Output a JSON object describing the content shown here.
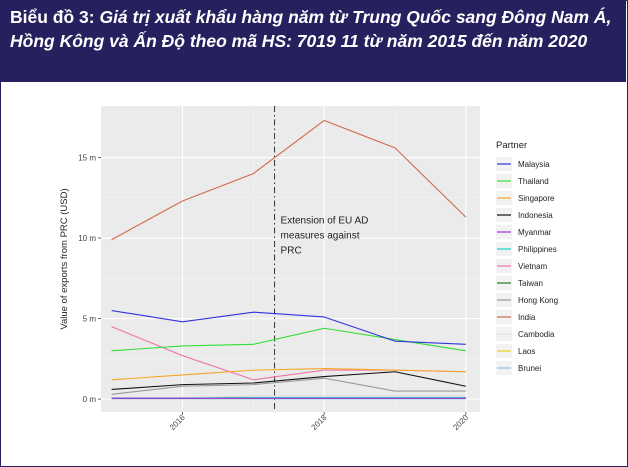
{
  "caption": {
    "prefix": "Biểu đồ 3: ",
    "title": "Giá trị xuất khẩu hàng năm từ Trung Quốc sang Đông Nam Á, Hồng Kông và Ấn Độ theo mã HS: 7019 11 từ năm 2015 đến năm 2020"
  },
  "chart_data": {
    "type": "line",
    "xlabel": "",
    "ylabel": "Value of exports from PRC (USD)",
    "x": [
      2015,
      2016,
      2017,
      2018,
      2019,
      2020
    ],
    "xticks": [
      "2016",
      "2018",
      "2020"
    ],
    "xlim": [
      2014.85,
      2020.2
    ],
    "yticks": [
      "0 m",
      "5 m",
      "10 m",
      "15 m"
    ],
    "ylim": [
      -0.8,
      18.2
    ],
    "grid": true,
    "legend_title": "Partner",
    "legend_position": "right",
    "annotation": {
      "x": 2017.3,
      "lines": [
        "Extension of EU AD",
        "measures against",
        "PRC"
      ],
      "line_style": "dash-dot"
    },
    "series": [
      {
        "name": "Malaysia",
        "color": "#3333e0",
        "values": [
          5.5,
          4.8,
          5.4,
          5.1,
          3.6,
          3.4
        ]
      },
      {
        "name": "Thailand",
        "color": "#33dd33",
        "values": [
          3.0,
          3.3,
          3.4,
          4.4,
          3.7,
          3.0
        ]
      },
      {
        "name": "Singapore",
        "color": "#f5a623",
        "values": [
          1.2,
          1.5,
          1.8,
          1.9,
          1.8,
          1.7
        ]
      },
      {
        "name": "Indonesia",
        "color": "#111111",
        "values": [
          0.6,
          0.9,
          1.0,
          1.4,
          1.7,
          0.8
        ]
      },
      {
        "name": "Myanmar",
        "color": "#9c33d6",
        "values": [
          0.05,
          0.05,
          0.05,
          0.05,
          0.05,
          0.05
        ]
      },
      {
        "name": "Philippines",
        "color": "#22d3d3",
        "values": [
          0.05,
          0.05,
          0.1,
          0.1,
          0.1,
          0.1
        ]
      },
      {
        "name": "Vietnam",
        "color": "#ee6fa8",
        "values": [
          4.5,
          2.7,
          1.2,
          1.8,
          1.8,
          1.7
        ]
      },
      {
        "name": "Taiwan",
        "color": "#1a7a1a",
        "values": [
          0.05,
          0.05,
          0.1,
          0.1,
          0.1,
          0.1
        ]
      },
      {
        "name": "Hong Kong",
        "color": "#999999",
        "values": [
          0.3,
          0.8,
          0.9,
          1.3,
          0.5,
          0.5
        ]
      },
      {
        "name": "India",
        "color": "#d06a4a",
        "values": [
          9.9,
          12.3,
          14.0,
          17.3,
          15.6,
          11.3
        ]
      },
      {
        "name": "Cambodia",
        "color": "#dddddd",
        "values": [
          0.1,
          0.1,
          0.2,
          0.2,
          0.2,
          0.2
        ]
      },
      {
        "name": "Laos",
        "color": "#f0d020",
        "values": [
          0.05,
          0.05,
          0.05,
          0.05,
          0.05,
          0.05
        ]
      },
      {
        "name": "Brunei",
        "color": "#86c3e6",
        "values": [
          0.02,
          0.02,
          0.02,
          0.02,
          0.02,
          0.02
        ]
      }
    ]
  }
}
